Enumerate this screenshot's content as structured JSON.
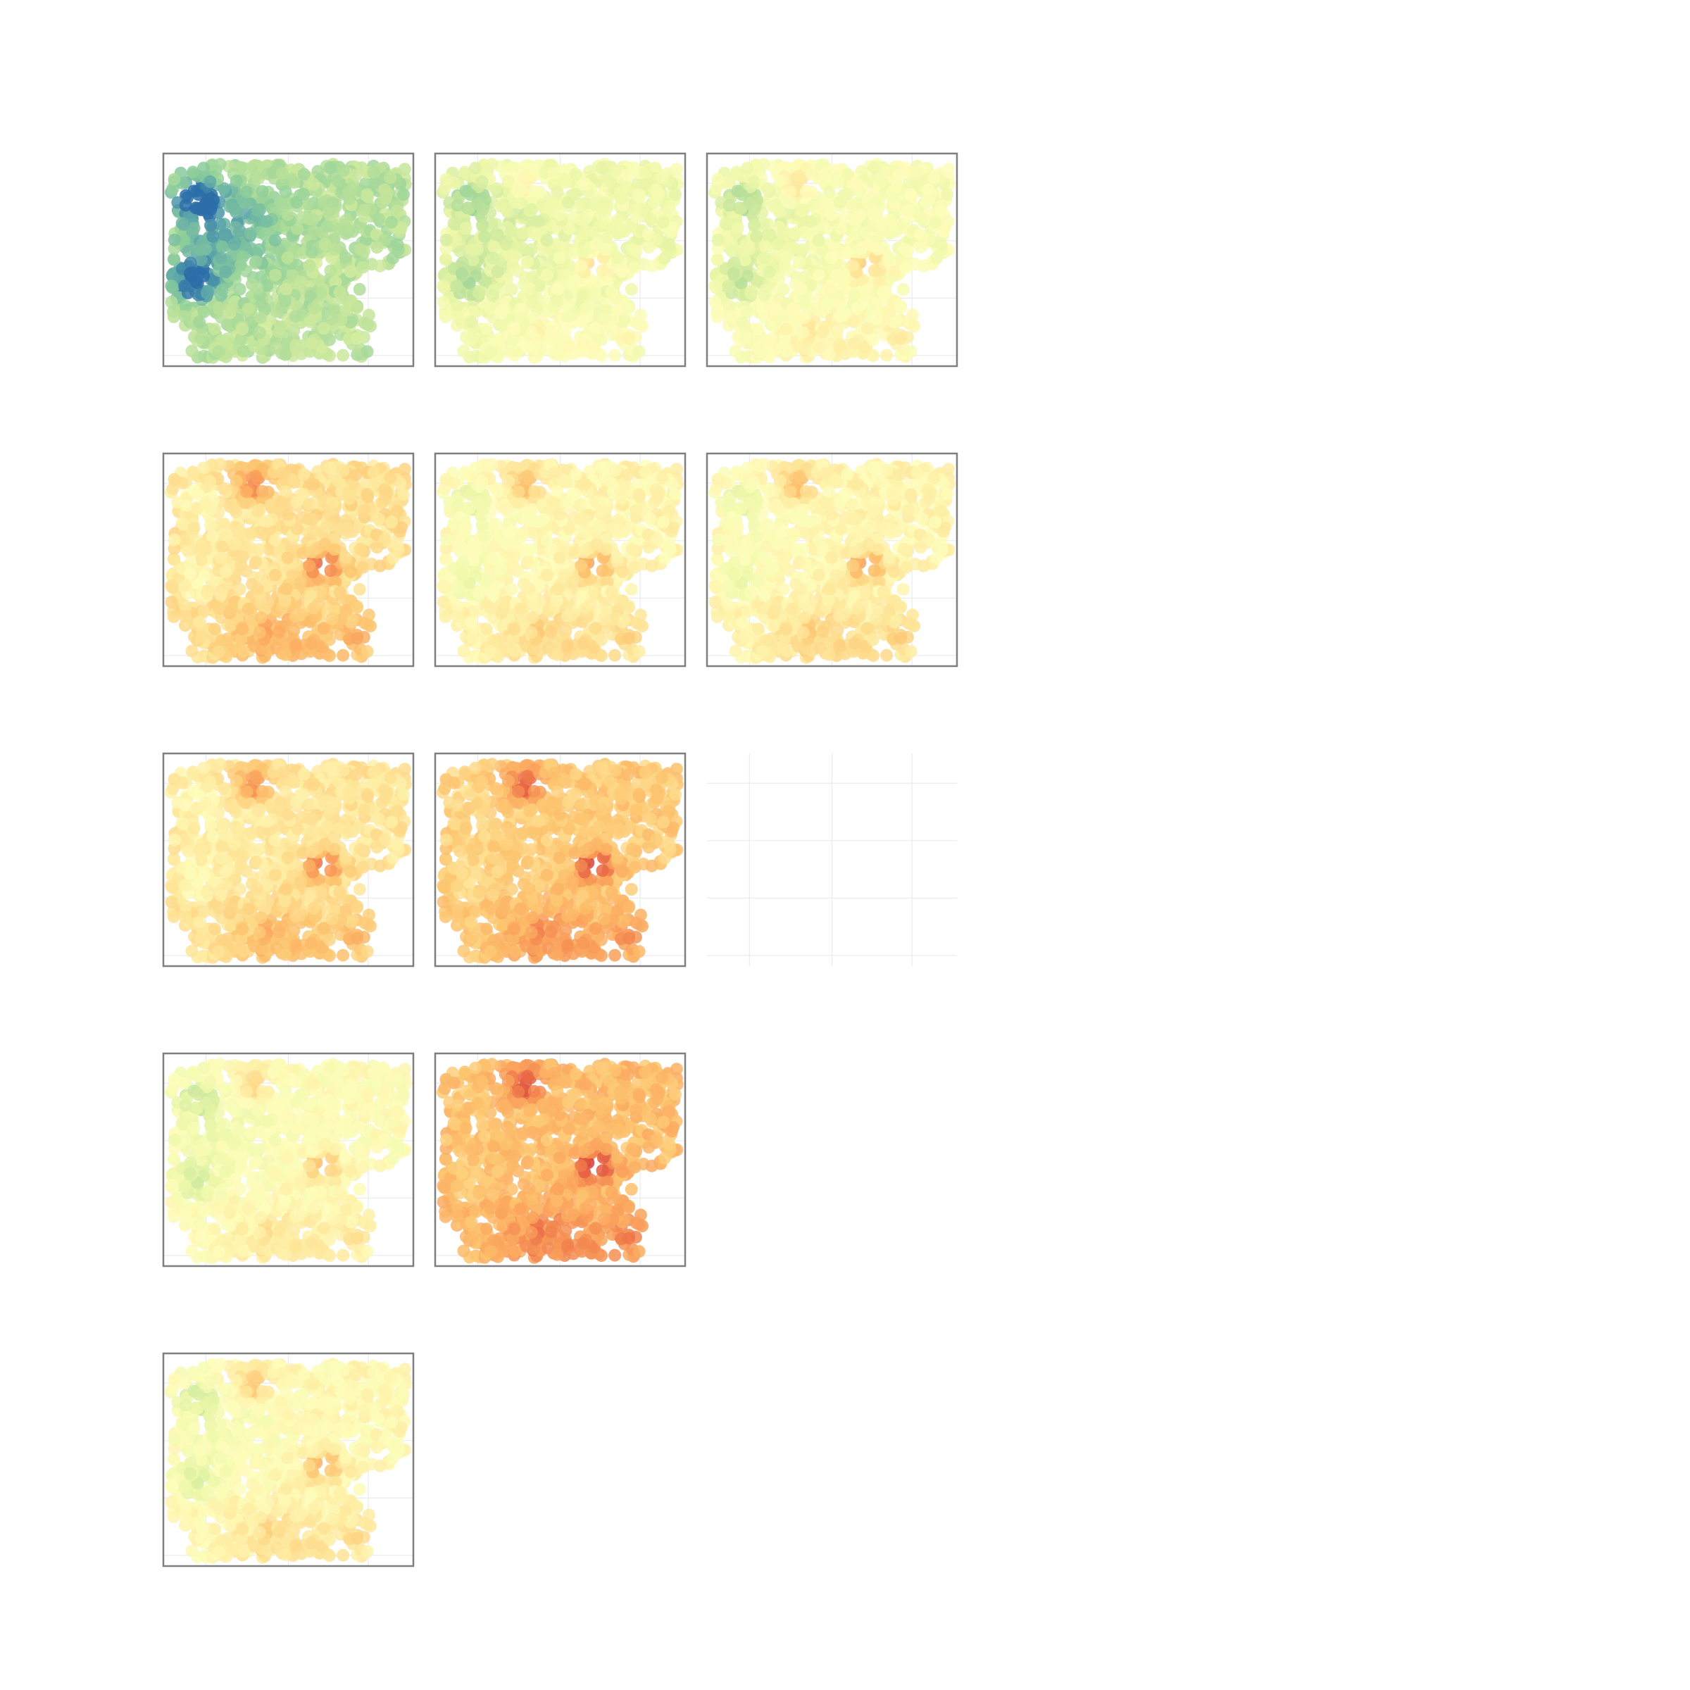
{
  "figure": {
    "title": "",
    "rows": 5,
    "cols": 3,
    "colors": {
      "background": "#ffffff",
      "frame": "#7f7f7f",
      "grid": "#ebebeb",
      "palette": [
        "#2b6fa8",
        "#5fa9a8",
        "#8fcf9a",
        "#c2e49a",
        "#ecf7a8",
        "#fefdbb",
        "#fee69a",
        "#fdc46f",
        "#f99d59",
        "#ea6a45",
        "#d33c3c"
      ]
    }
  },
  "chart_data": [
    {
      "type": "scatter",
      "panel": 1,
      "empty": false,
      "base_level": 0.28,
      "hotspot_strength": 0.05,
      "coldspot_strength": 0.3
    },
    {
      "type": "scatter",
      "panel": 2,
      "empty": false,
      "base_level": 0.43,
      "hotspot_strength": 0.18,
      "coldspot_strength": 0.14
    },
    {
      "type": "scatter",
      "panel": 3,
      "empty": false,
      "base_level": 0.47,
      "hotspot_strength": 0.2,
      "coldspot_strength": 0.14
    },
    {
      "type": "scatter",
      "panel": 4,
      "empty": false,
      "base_level": 0.62,
      "hotspot_strength": 0.3,
      "coldspot_strength": 0.08
    },
    {
      "type": "scatter",
      "panel": 5,
      "empty": false,
      "base_level": 0.54,
      "hotspot_strength": 0.25,
      "coldspot_strength": 0.1
    },
    {
      "type": "scatter",
      "panel": 6,
      "empty": false,
      "base_level": 0.54,
      "hotspot_strength": 0.26,
      "coldspot_strength": 0.1
    },
    {
      "type": "scatter",
      "panel": 7,
      "empty": false,
      "base_level": 0.6,
      "hotspot_strength": 0.3,
      "coldspot_strength": 0.07
    },
    {
      "type": "scatter",
      "panel": 8,
      "empty": false,
      "base_level": 0.68,
      "hotspot_strength": 0.32,
      "coldspot_strength": 0.04
    },
    {
      "type": "scatter",
      "panel": 9,
      "empty": true
    },
    {
      "type": "scatter",
      "panel": 10,
      "empty": false,
      "base_level": 0.5,
      "hotspot_strength": 0.22,
      "coldspot_strength": 0.12
    },
    {
      "type": "scatter",
      "panel": 11,
      "empty": false,
      "base_level": 0.72,
      "hotspot_strength": 0.3,
      "coldspot_strength": 0.03
    },
    {
      "type": "scatter",
      "panel": 12,
      "empty": true,
      "blank": true
    },
    {
      "type": "scatter",
      "panel": 13,
      "empty": false,
      "base_level": 0.52,
      "hotspot_strength": 0.24,
      "coldspot_strength": 0.12
    },
    {
      "type": "scatter",
      "panel": 14,
      "empty": true,
      "blank": true
    },
    {
      "type": "scatter",
      "panel": 15,
      "empty": true,
      "blank": true
    }
  ]
}
